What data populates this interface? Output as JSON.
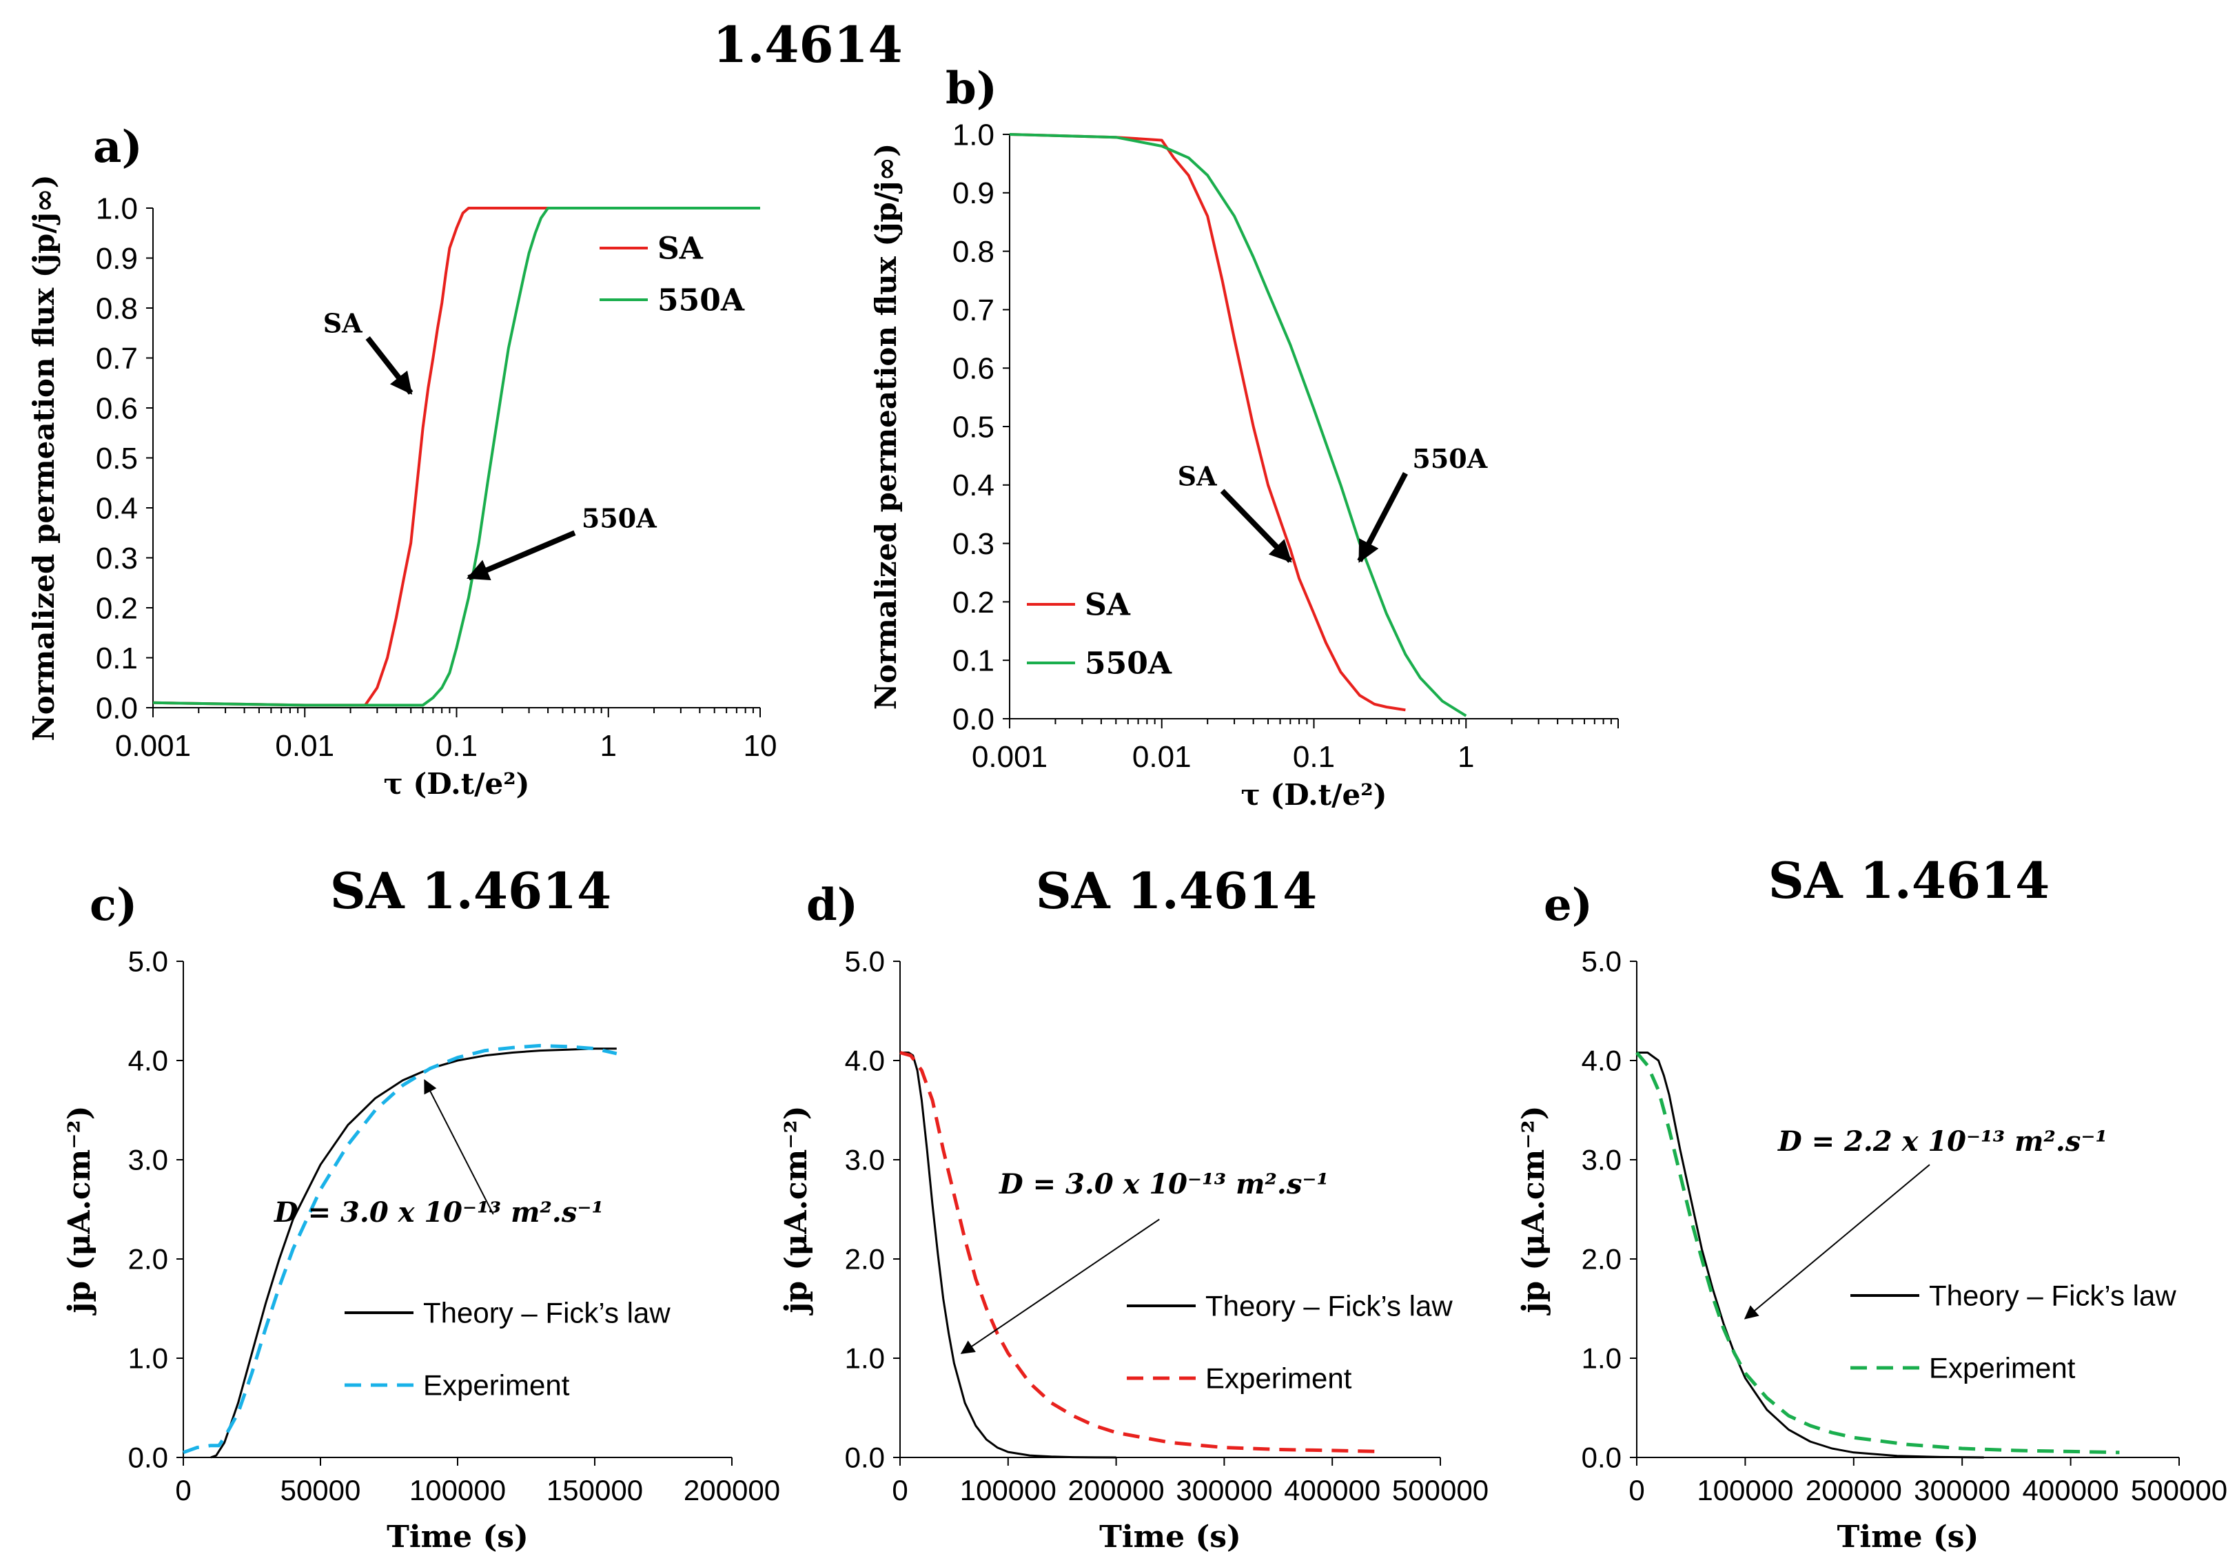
{
  "figure_title": "1.4614",
  "chart_data": [
    {
      "id": "a",
      "panel_label": "a)",
      "type": "line",
      "xscale": "log",
      "xlim": [
        0.001,
        10
      ],
      "ylim": [
        0,
        1.0
      ],
      "xticks": [
        0.001,
        0.01,
        0.1,
        1,
        10
      ],
      "xtick_labels": [
        "0.001",
        "0.01",
        "0.1",
        "1",
        "10"
      ],
      "yticks": [
        0,
        0.1,
        0.2,
        0.3,
        0.4,
        0.5,
        0.6,
        0.7,
        0.8,
        0.9,
        1.0
      ],
      "ytick_labels": [
        "0.0",
        "0.1",
        "0.2",
        "0.3",
        "0.4",
        "0.5",
        "0.6",
        "0.7",
        "0.8",
        "0.9",
        "1.0"
      ],
      "xlabel": "τ (D.t/e²)",
      "ylabel": "Normalized permeation flux (jp/j∞)",
      "legend": "top-right",
      "series": [
        {
          "name": "SA",
          "color": "#e8211d",
          "dash": false,
          "x": [
            0.001,
            0.01,
            0.025,
            0.03,
            0.035,
            0.04,
            0.045,
            0.05,
            0.055,
            0.06,
            0.065,
            0.07,
            0.075,
            0.08,
            0.085,
            0.09,
            0.1,
            0.11,
            0.12,
            1,
            10
          ],
          "y": [
            0.01,
            0.005,
            0.005,
            0.04,
            0.1,
            0.18,
            0.26,
            0.33,
            0.45,
            0.56,
            0.64,
            0.7,
            0.76,
            0.81,
            0.87,
            0.92,
            0.96,
            0.99,
            1.0,
            1.0,
            1.0
          ]
        },
        {
          "name": "550A",
          "color": "#1aae4d",
          "dash": false,
          "x": [
            0.001,
            0.01,
            0.06,
            0.07,
            0.08,
            0.09,
            0.1,
            0.12,
            0.14,
            0.16,
            0.18,
            0.2,
            0.22,
            0.25,
            0.28,
            0.3,
            0.33,
            0.36,
            0.4,
            1,
            10
          ],
          "y": [
            0.01,
            0.005,
            0.005,
            0.02,
            0.04,
            0.07,
            0.12,
            0.22,
            0.33,
            0.45,
            0.55,
            0.64,
            0.72,
            0.8,
            0.87,
            0.91,
            0.95,
            0.98,
            1.0,
            1.0,
            1.0
          ]
        }
      ],
      "annotations": [
        {
          "text": "SA",
          "tail": [
            0.026,
            0.74
          ],
          "head": [
            0.05,
            0.63
          ]
        },
        {
          "text": "550A",
          "tail": [
            0.6,
            0.35
          ],
          "head": [
            0.12,
            0.26
          ]
        }
      ]
    },
    {
      "id": "b",
      "panel_label": "b)",
      "type": "line",
      "xscale": "log",
      "xlim": [
        0.001,
        10
      ],
      "ylim": [
        0,
        1.0
      ],
      "xticks": [
        0.001,
        0.01,
        0.1,
        1
      ],
      "xtick_labels": [
        "0.001",
        "0.01",
        "0.1",
        "1"
      ],
      "yticks": [
        0,
        0.1,
        0.2,
        0.3,
        0.4,
        0.5,
        0.6,
        0.7,
        0.8,
        0.9,
        1.0
      ],
      "ytick_labels": [
        "0.0",
        "0.1",
        "0.2",
        "0.3",
        "0.4",
        "0.5",
        "0.6",
        "0.7",
        "0.8",
        "0.9",
        "1.0"
      ],
      "xlabel": "τ (D.t/e²)",
      "ylabel": "Normalized permeation flux (jp/j∞)",
      "legend": "bottom-left",
      "series": [
        {
          "name": "SA",
          "color": "#e8211d",
          "dash": false,
          "x": [
            0.001,
            0.005,
            0.01,
            0.012,
            0.015,
            0.02,
            0.025,
            0.03,
            0.04,
            0.05,
            0.06,
            0.07,
            0.08,
            0.1,
            0.12,
            0.15,
            0.2,
            0.25,
            0.3,
            0.4
          ],
          "y": [
            1.0,
            0.995,
            0.99,
            0.96,
            0.93,
            0.86,
            0.75,
            0.65,
            0.5,
            0.4,
            0.34,
            0.29,
            0.24,
            0.18,
            0.13,
            0.08,
            0.04,
            0.025,
            0.02,
            0.015
          ]
        },
        {
          "name": "550A",
          "color": "#1aae4d",
          "dash": false,
          "x": [
            0.001,
            0.005,
            0.01,
            0.015,
            0.02,
            0.03,
            0.04,
            0.05,
            0.07,
            0.1,
            0.15,
            0.2,
            0.3,
            0.4,
            0.5,
            0.7,
            1.0
          ],
          "y": [
            1.0,
            0.995,
            0.98,
            0.96,
            0.93,
            0.86,
            0.79,
            0.73,
            0.64,
            0.53,
            0.4,
            0.3,
            0.18,
            0.11,
            0.07,
            0.03,
            0.005
          ]
        }
      ],
      "annotations": [
        {
          "text": "SA",
          "tail": [
            0.025,
            0.39
          ],
          "head": [
            0.07,
            0.27
          ]
        },
        {
          "text": "550A",
          "tail": [
            0.4,
            0.42
          ],
          "head": [
            0.2,
            0.27
          ]
        }
      ]
    },
    {
      "id": "c",
      "panel_label": "c)",
      "title": "SA 1.4614",
      "type": "line",
      "xscale": "linear",
      "xlim": [
        0,
        200000
      ],
      "ylim": [
        0,
        5.0
      ],
      "xticks": [
        0,
        50000,
        100000,
        150000,
        200000
      ],
      "xtick_labels": [
        "0",
        "50000",
        "100000",
        "150000",
        "200000"
      ],
      "yticks": [
        0,
        1,
        2,
        3,
        4,
        5
      ],
      "ytick_labels": [
        "0.0",
        "1.0",
        "2.0",
        "3.0",
        "4.0",
        "5.0"
      ],
      "xlabel": "Time (s)",
      "ylabel": "jp (μA.cm⁻²)",
      "legend": "bottom-right",
      "series": [
        {
          "name": "Theory – Fick’s law",
          "color": "#000000",
          "dash": false,
          "x": [
            10000,
            12000,
            15000,
            20000,
            25000,
            30000,
            35000,
            40000,
            50000,
            60000,
            70000,
            80000,
            90000,
            100000,
            110000,
            120000,
            130000,
            140000,
            150000,
            158000
          ],
          "y": [
            0,
            0.02,
            0.15,
            0.55,
            1.05,
            1.55,
            2.0,
            2.4,
            2.95,
            3.35,
            3.62,
            3.8,
            3.92,
            4.0,
            4.05,
            4.08,
            4.1,
            4.11,
            4.12,
            4.12
          ]
        },
        {
          "name": "Experiment",
          "color": "#1ab2e8",
          "dash": true,
          "x": [
            0,
            5000,
            10000,
            13000,
            15000,
            20000,
            25000,
            30000,
            35000,
            40000,
            50000,
            60000,
            70000,
            80000,
            90000,
            100000,
            110000,
            120000,
            130000,
            140000,
            150000,
            158000
          ],
          "y": [
            0.05,
            0.1,
            0.12,
            0.12,
            0.2,
            0.45,
            0.85,
            1.3,
            1.72,
            2.1,
            2.7,
            3.15,
            3.5,
            3.75,
            3.92,
            4.03,
            4.1,
            4.13,
            4.15,
            4.14,
            4.12,
            4.07
          ]
        }
      ],
      "annotations": [
        {
          "text": "D = 3.0 x 10⁻¹³ m².s⁻¹",
          "tail": [
            113000,
            2.45
          ],
          "head": [
            88000,
            3.8
          ]
        }
      ]
    },
    {
      "id": "d",
      "panel_label": "d)",
      "title": "SA 1.4614",
      "type": "line",
      "xscale": "linear",
      "xlim": [
        0,
        500000
      ],
      "ylim": [
        0,
        5.0
      ],
      "xticks": [
        0,
        100000,
        200000,
        300000,
        400000,
        500000
      ],
      "xtick_labels": [
        "0",
        "100000",
        "200000",
        "300000",
        "400000",
        "500000"
      ],
      "yticks": [
        0,
        1,
        2,
        3,
        4,
        5
      ],
      "ytick_labels": [
        "0.0",
        "1.0",
        "2.0",
        "3.0",
        "4.0",
        "5.0"
      ],
      "xlabel": "Time (s)",
      "ylabel": "jp (μA.cm⁻²)",
      "legend": "bottom-right",
      "series": [
        {
          "name": "Theory – Fick’s law",
          "color": "#000000",
          "dash": false,
          "x": [
            0,
            8000,
            12000,
            16000,
            20000,
            25000,
            30000,
            35000,
            40000,
            45000,
            50000,
            60000,
            70000,
            80000,
            90000,
            100000,
            120000,
            140000,
            160000,
            180000,
            200000
          ],
          "y": [
            4.08,
            4.08,
            4.05,
            3.9,
            3.6,
            3.1,
            2.55,
            2.05,
            1.6,
            1.25,
            0.95,
            0.55,
            0.32,
            0.18,
            0.1,
            0.055,
            0.02,
            0.008,
            0.003,
            0.001,
            0
          ]
        },
        {
          "name": "Experiment",
          "color": "#e8211d",
          "dash": true,
          "x": [
            0,
            10000,
            20000,
            30000,
            40000,
            50000,
            60000,
            70000,
            80000,
            90000,
            100000,
            120000,
            140000,
            160000,
            180000,
            200000,
            250000,
            300000,
            350000,
            400000,
            445000
          ],
          "y": [
            4.08,
            4.05,
            3.9,
            3.6,
            3.1,
            2.65,
            2.2,
            1.8,
            1.5,
            1.25,
            1.05,
            0.75,
            0.55,
            0.42,
            0.32,
            0.25,
            0.15,
            0.1,
            0.08,
            0.07,
            0.06
          ]
        }
      ],
      "annotations": [
        {
          "text": "D = 3.0 x 10⁻¹³ m².s⁻¹",
          "tail": [
            240000,
            2.4
          ],
          "head": [
            57000,
            1.05
          ]
        }
      ]
    },
    {
      "id": "e",
      "panel_label": "e)",
      "title": "SA 1.4614",
      "type": "line",
      "xscale": "linear",
      "xlim": [
        0,
        500000
      ],
      "ylim": [
        0,
        5.0
      ],
      "xticks": [
        0,
        100000,
        200000,
        300000,
        400000,
        500000
      ],
      "xtick_labels": [
        "0",
        "100000",
        "200000",
        "300000",
        "400000",
        "500000"
      ],
      "yticks": [
        0,
        1,
        2,
        3,
        4,
        5
      ],
      "ytick_labels": [
        "0.0",
        "1.0",
        "2.0",
        "3.0",
        "4.0",
        "5.0"
      ],
      "xlabel": "Time (s)",
      "ylabel": "jp (μA.cm⁻²)",
      "legend": "bottom-right",
      "series": [
        {
          "name": "Theory – Fick’s law",
          "color": "#000000",
          "dash": false,
          "x": [
            0,
            10000,
            20000,
            25000,
            30000,
            40000,
            50000,
            60000,
            70000,
            80000,
            90000,
            100000,
            120000,
            140000,
            160000,
            180000,
            200000,
            240000,
            280000,
            320000
          ],
          "y": [
            4.08,
            4.08,
            4.0,
            3.85,
            3.65,
            3.1,
            2.6,
            2.1,
            1.7,
            1.35,
            1.05,
            0.8,
            0.48,
            0.28,
            0.16,
            0.09,
            0.05,
            0.015,
            0.004,
            0
          ]
        },
        {
          "name": "Experiment",
          "color": "#1aae4d",
          "dash": true,
          "x": [
            0,
            10000,
            20000,
            30000,
            40000,
            50000,
            60000,
            70000,
            80000,
            90000,
            100000,
            120000,
            140000,
            160000,
            180000,
            200000,
            250000,
            300000,
            350000,
            400000,
            445000
          ],
          "y": [
            4.08,
            3.95,
            3.7,
            3.3,
            2.85,
            2.4,
            2.0,
            1.62,
            1.3,
            1.05,
            0.85,
            0.6,
            0.42,
            0.32,
            0.25,
            0.2,
            0.13,
            0.09,
            0.07,
            0.06,
            0.05
          ]
        }
      ],
      "annotations": [
        {
          "text": "D = 2.2 x 10⁻¹³ m².s⁻¹",
          "tail": [
            270000,
            2.95
          ],
          "head": [
            100000,
            1.4
          ]
        }
      ]
    }
  ]
}
